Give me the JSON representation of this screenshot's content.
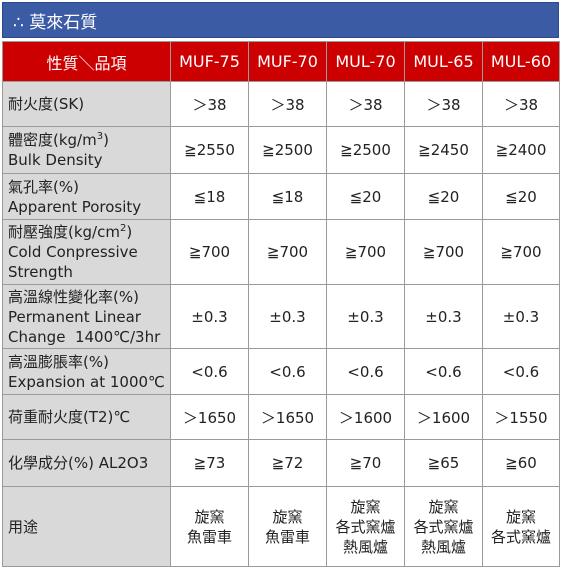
{
  "title": "∴ 莫來石質",
  "header": {
    "property_label": "性質＼品項",
    "products": [
      "MUF-75",
      "MUF-70",
      "MUL-70",
      "MUL-65",
      "MUL-60"
    ]
  },
  "rows": [
    {
      "label_lines": [
        "耐火度(SK)"
      ],
      "values": [
        "＞38",
        "＞38",
        "＞38",
        "＞38",
        "＞38"
      ]
    },
    {
      "label_lines": [
        "體密度(kg/m",
        "Bulk Density"
      ],
      "label_sup": "3",
      "label_close": ")",
      "values": [
        "≧2550",
        "≧2500",
        "≧2500",
        "≧2450",
        "≧2400"
      ]
    },
    {
      "label_lines": [
        "氣孔率(%)",
        "Apparent Porosity"
      ],
      "values": [
        "≦18",
        "≦18",
        "≦20",
        "≦20",
        "≦20"
      ]
    },
    {
      "label_lines": [
        "耐壓強度(kg/cm",
        "Cold Conpressive",
        "Strength"
      ],
      "label_sup": "2",
      "label_close": ")",
      "values": [
        "≧700",
        "≧700",
        "≧700",
        "≧700",
        "≧700"
      ]
    },
    {
      "label_lines": [
        "高溫線性變化率(%)",
        "Permanent Linear",
        "Change  1400℃/3hr"
      ],
      "values": [
        "±0.3",
        "±0.3",
        "±0.3",
        "±0.3",
        "±0.3"
      ]
    },
    {
      "label_lines": [
        "高溫膨脹率(%)",
        "Expansion at 1000℃"
      ],
      "values": [
        "<0.6",
        "<0.6",
        "<0.6",
        "<0.6",
        "<0.6"
      ]
    },
    {
      "label_lines": [
        "荷重耐火度(T2)℃"
      ],
      "values": [
        "＞1650",
        "＞1650",
        "＞1600",
        "＞1600",
        "＞1550"
      ]
    },
    {
      "label_lines": [
        "化學成分(%) AL2O3"
      ],
      "values": [
        "≧73",
        "≧72",
        "≧70",
        "≧65",
        "≧60"
      ]
    }
  ],
  "usage": {
    "label": "用途",
    "values": [
      [
        "旋窯",
        "魚雷車"
      ],
      [
        "旋窯",
        "魚雷車"
      ],
      [
        "旋窯",
        "各式窯爐",
        "熱風爐"
      ],
      [
        "旋窯",
        "各式窯爐",
        "熱風爐"
      ],
      [
        "旋窯",
        "各式窯爐"
      ]
    ]
  }
}
